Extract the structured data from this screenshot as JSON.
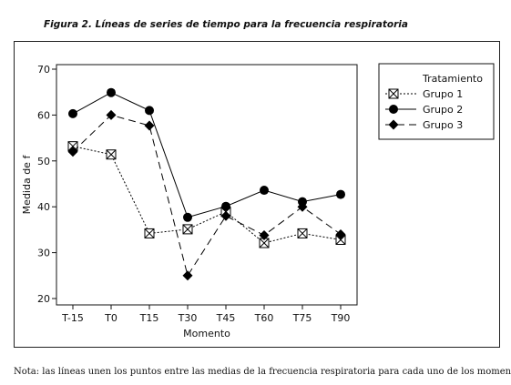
{
  "figure": {
    "title": "Figura 2. Líneas de series de tiempo para la frecuencia respiratoria",
    "note": "Nota: las líneas unen los puntos entre las medias de la frecuencia respiratoria para cada uno de los momentos y grupos."
  },
  "chart_data": {
    "type": "line",
    "xlabel": "Momento",
    "ylabel": "Medida de f",
    "ylim": [
      20,
      70
    ],
    "yticks": [
      20,
      30,
      40,
      50,
      60,
      70
    ],
    "categories": [
      "T-15",
      "T0",
      "T15",
      "T30",
      "T45",
      "T60",
      "T75",
      "T90"
    ],
    "legend": {
      "title": "Tratamiento",
      "placement": "top-right, outside plot"
    },
    "grid": false,
    "series": [
      {
        "name": "Grupo 1",
        "marker": "square-x",
        "line": "dotted",
        "color": "#000000",
        "values": [
          53.2,
          51.4,
          34.2,
          35.1,
          38.9,
          32.1,
          34.2,
          32.8
        ]
      },
      {
        "name": "Grupo 2",
        "marker": "circle",
        "line": "solid",
        "color": "#000000",
        "values": [
          60.3,
          64.9,
          61.0,
          37.7,
          40.1,
          43.6,
          41.1,
          42.7
        ]
      },
      {
        "name": "Grupo 3",
        "marker": "diamond",
        "line": "dashed",
        "color": "#000000",
        "values": [
          52.0,
          60.0,
          57.7,
          25.0,
          38.0,
          33.8,
          40.0,
          34.0
        ]
      }
    ]
  }
}
